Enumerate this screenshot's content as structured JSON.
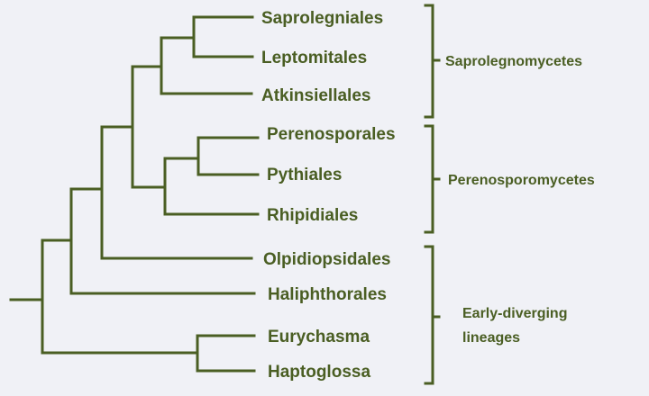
{
  "colors": {
    "line": "#4a5e23",
    "text": "#4a5e23",
    "background": "#f0f1f6"
  },
  "taxa": [
    "Saprolegniales",
    "Leptomitales",
    "Atkinsiellales",
    "Perenosporales",
    "Pythiales",
    "Rhipidiales",
    "Olpidiopsidales",
    "Haliphthorales",
    "Eurychasma",
    "Haptoglossa"
  ],
  "groups": [
    {
      "lines": [
        "Saprolegnomycetes"
      ]
    },
    {
      "lines": [
        "Perenosporomycetes"
      ]
    },
    {
      "lines": [
        "Early-diverging",
        "lineages"
      ]
    }
  ]
}
